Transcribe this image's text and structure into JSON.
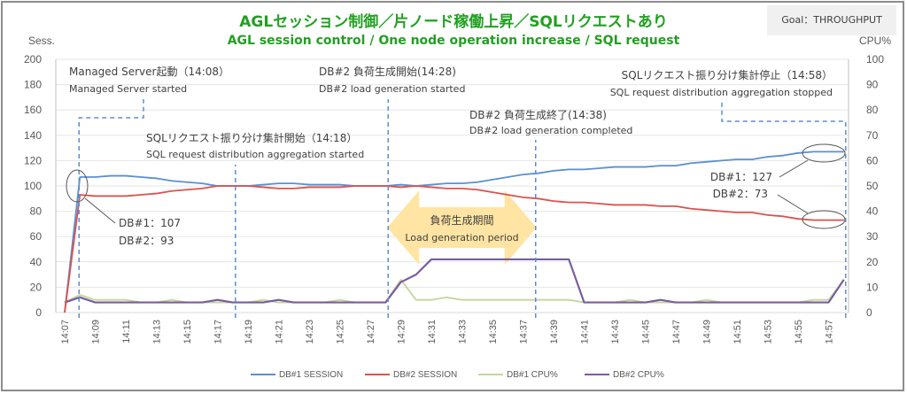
{
  "header": {
    "title_ja": "AGLセッション制御／片ノード稼働上昇／SQLリクエストあり",
    "title_en": "AGL session control / One node operation increase / SQL request",
    "goal_badge": "Goal：THROUGHPUT"
  },
  "chart_data": {
    "type": "line",
    "title": "AGLセッション制御／片ノード稼働上昇／SQLリクエストあり",
    "subtitle": "AGL session control / One node operation increase / SQL request",
    "xlabel": "",
    "ylabel": "Sess.",
    "y2label": "CPU%",
    "ylim": [
      0,
      200
    ],
    "y2lim": [
      0,
      100
    ],
    "yticks": [
      "0",
      "20",
      "40",
      "60",
      "80",
      "100",
      "120",
      "140",
      "160",
      "180",
      "200"
    ],
    "y2ticks": [
      "0",
      "10",
      "20",
      "30",
      "40",
      "50",
      "60",
      "70",
      "80",
      "90",
      "100"
    ],
    "grid": true,
    "legend_position": "bottom",
    "x": [
      "14:07",
      "14:08",
      "14:09",
      "14:10",
      "14:11",
      "14:12",
      "14:13",
      "14:14",
      "14:15",
      "14:16",
      "14:17",
      "14:18",
      "14:19",
      "14:20",
      "14:21",
      "14:22",
      "14:23",
      "14:24",
      "14:25",
      "14:26",
      "14:27",
      "14:28",
      "14:29",
      "14:30",
      "14:31",
      "14:32",
      "14:33",
      "14:34",
      "14:35",
      "14:36",
      "14:37",
      "14:38",
      "14:39",
      "14:40",
      "14:41",
      "14:42",
      "14:43",
      "14:44",
      "14:45",
      "14:46",
      "14:47",
      "14:48",
      "14:49",
      "14:50",
      "14:51",
      "14:52",
      "14:53",
      "14:54",
      "14:55",
      "14:56",
      "14:57",
      "14:58"
    ],
    "xtick_labels": [
      "14:07",
      "14:09",
      "14:11",
      "14:13",
      "14:15",
      "14:17",
      "14:19",
      "14:21",
      "14:23",
      "14:25",
      "14:27",
      "14:29",
      "14:31",
      "14:33",
      "14:35",
      "14:37",
      "14:39",
      "14:41",
      "14:43",
      "14:45",
      "14:47",
      "14:49",
      "14:51",
      "14:53",
      "14:55",
      "14:57"
    ],
    "series": [
      {
        "name": "DB#1 SESSION",
        "axis": "left",
        "color": "#5b8fd0",
        "values": [
          0,
          107,
          107,
          108,
          108,
          107,
          106,
          104,
          103,
          102,
          100,
          100,
          100,
          101,
          102,
          102,
          101,
          101,
          101,
          100,
          100,
          100,
          101,
          100,
          101,
          102,
          102,
          103,
          105,
          107,
          109,
          110,
          112,
          113,
          113,
          114,
          115,
          115,
          115,
          116,
          116,
          118,
          119,
          120,
          121,
          121,
          123,
          124,
          126,
          127,
          127,
          127
        ]
      },
      {
        "name": "DB#2 SESSION",
        "axis": "left",
        "color": "#d9534f",
        "values": [
          0,
          93,
          92,
          92,
          92,
          93,
          94,
          96,
          97,
          98,
          100,
          100,
          100,
          99,
          98,
          98,
          99,
          99,
          99,
          100,
          100,
          100,
          99,
          100,
          99,
          98,
          98,
          97,
          95,
          93,
          91,
          90,
          88,
          87,
          87,
          86,
          85,
          85,
          85,
          84,
          84,
          82,
          81,
          80,
          79,
          79,
          77,
          76,
          74,
          73,
          73,
          73
        ]
      },
      {
        "name": "DB#1 CPU%",
        "axis": "right",
        "color": "#c3d69b",
        "values": [
          4,
          7,
          5,
          5,
          5,
          4,
          4,
          5,
          4,
          4,
          4,
          4,
          4,
          5,
          4,
          4,
          4,
          4,
          5,
          4,
          4,
          4,
          13,
          5,
          5,
          6,
          5,
          5,
          5,
          5,
          5,
          5,
          5,
          5,
          4,
          4,
          4,
          5,
          4,
          4,
          4,
          4,
          5,
          4,
          4,
          4,
          4,
          4,
          4,
          5,
          5,
          13
        ]
      },
      {
        "name": "DB#2 CPU%",
        "axis": "right",
        "color": "#7a5c9e",
        "values": [
          4,
          6,
          4,
          4,
          4,
          4,
          4,
          4,
          4,
          4,
          5,
          4,
          4,
          4,
          5,
          4,
          4,
          4,
          4,
          4,
          4,
          4,
          12,
          15,
          21,
          21,
          21,
          21,
          21,
          21,
          21,
          21,
          21,
          21,
          4,
          4,
          4,
          4,
          4,
          5,
          4,
          4,
          4,
          4,
          4,
          4,
          4,
          4,
          4,
          4,
          4,
          13
        ]
      }
    ],
    "events": [
      {
        "label_ja": "Managed Server起動（14:08）",
        "label_en": "Managed Server started",
        "time": "14:08"
      },
      {
        "label_ja": "SQLリクエスト振り分け集計開始（14:18）",
        "label_en": "SQL request distribution aggregation started",
        "time": "14:18"
      },
      {
        "label_ja": "DB#2 負荷生成開始(14:28)",
        "label_en": "DB#2 load generation started",
        "time": "14:28"
      },
      {
        "label_ja": "DB#2 負荷生成終了(14:38)",
        "label_en": "DB#2 load generation completed",
        "time": "14:38"
      },
      {
        "label_ja": "SQLリクエスト振り分け集計停止（14:58）",
        "label_en": "SQL request distribution aggregation stopped",
        "time": "14:58"
      }
    ],
    "callouts": [
      {
        "line1": "DB#1：107",
        "line2": "DB#2：93",
        "time": "14:08"
      },
      {
        "line1": "DB#1：127",
        "line2": "DB#2：73",
        "time": "14:58"
      }
    ],
    "period_label": {
      "ja": "負荷生成期間",
      "en": "Load generation period",
      "from": "14:28",
      "to": "14:38"
    }
  }
}
